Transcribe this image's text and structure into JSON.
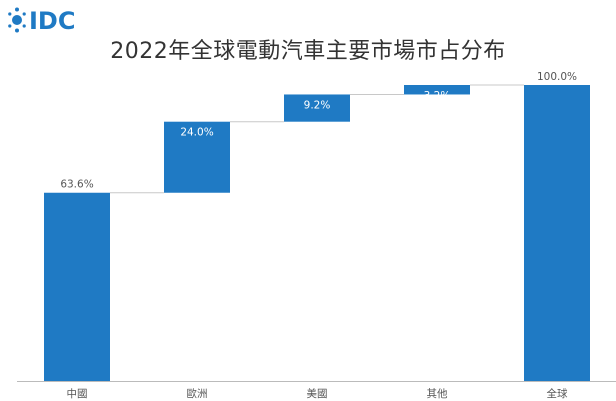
{
  "logo": {
    "text": "IDC",
    "color": "#1f7ac4"
  },
  "chart_data": {
    "type": "waterfall",
    "title": "2022年全球電動汽車主要市場市占分布",
    "categories": [
      "中國",
      "歐洲",
      "美國",
      "其他",
      "全球"
    ],
    "values": [
      63.6,
      24.0,
      9.2,
      3.2,
      100.0
    ],
    "labels": [
      "63.6%",
      "24.0%",
      "9.2%",
      "3.2%",
      "100.0%"
    ],
    "cumulative_total": true,
    "ylim": [
      0,
      100
    ],
    "xlabel": "",
    "ylabel": "",
    "grid": false,
    "legend": "none",
    "colors": {
      "bar": "#1f7ac4",
      "inside_label": "#ffffff",
      "outside_label": "#555555",
      "connector": "#c8c8c8",
      "axis": "#bbbbbb"
    }
  }
}
